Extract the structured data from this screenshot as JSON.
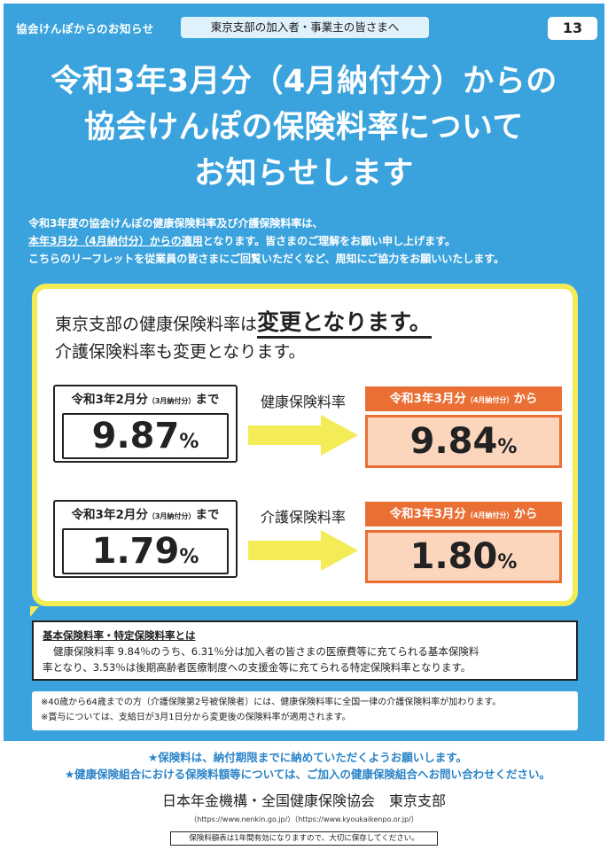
{
  "header": {
    "left_label": "協会けんぽからのお知らせ",
    "audience_pill": "東京支部の加入者・事業主の皆さまへ",
    "page_number": "13"
  },
  "headline": {
    "line1": "令和3年3月分（4月納付分）からの",
    "line2": "協会けんぽの保険料率について",
    "line3": "お知らせします"
  },
  "intro": {
    "line1": "令和3年度の協会けんぽの健康保険料率及び介護保険料率は、",
    "line2_underlined": "本年3月分（4月納付分）からの適用",
    "line2_rest": "となります。皆さまのご理解をお願い申し上げます。",
    "line3": "こちらのリーフレットを従業員の皆さまにご回覧いただくなど、周知にご協力をお願いいたします。"
  },
  "main_box": {
    "line1_prefix": "東京支部の健康保険料率は",
    "line1_emphasis": "変更となります。",
    "line2": "介護保険料率も変更となります。",
    "rates": [
      {
        "label": "健康保険料率",
        "old_caption_main": "令和3年2月分",
        "old_caption_small": "（3月納付分）",
        "old_caption_suffix": "まで",
        "old_value": "9.87",
        "new_caption_main": "令和3年3月分",
        "new_caption_small": "（4月納付分）",
        "new_caption_suffix": "から",
        "new_value": "9.84",
        "unit": "%"
      },
      {
        "label": "介護保険料率",
        "old_caption_main": "令和3年2月分",
        "old_caption_small": "（3月納付分）",
        "old_caption_suffix": "まで",
        "old_value": "1.79",
        "new_caption_main": "令和3年3月分",
        "new_caption_small": "（4月納付分）",
        "new_caption_suffix": "から",
        "new_value": "1.80",
        "unit": "%"
      }
    ]
  },
  "definition": {
    "title": "基本保険料率・特定保険料率とは",
    "line1": "健康保険料率 9.84％のうち、6.31％分は加入者の皆さまの医療費等に充てられる基本保険料",
    "line2": "率となり、3.53％は後期高齢者医療制度への支援金等に充てられる特定保険料率となります。"
  },
  "notes": {
    "line1": "※40歳から64歳までの方（介護保険第2号被保険者）には、健康保険料率に全国一律の介護保険料率が加わります。",
    "line2": "※賞与については、支給日が3月1日分から変更後の保険料率が適用されます。"
  },
  "bottom": {
    "notice1": "★保険料は、納付期限までに納めていただくようお願いします。",
    "notice2": "★健康保険組合における保険料額等については、ご加入の健康保険組合へお問い合わせください。",
    "signature": "日本年金機構・全国健康保険協会　東京支部",
    "urls": "（https://www.nenkin.go.jp/）（https://www.kyoukaikenpo.or.jp/）",
    "keep_note": "保険料額表は1年間有効になりますので、大切に保存してください。"
  },
  "colors": {
    "background_blue": "#3aa3dd",
    "highlight_yellow": "#f3ec56",
    "accent_orange": "#ea6f34",
    "new_value_fill": "#fbd6bc",
    "notice_blue": "#2a84c8"
  }
}
